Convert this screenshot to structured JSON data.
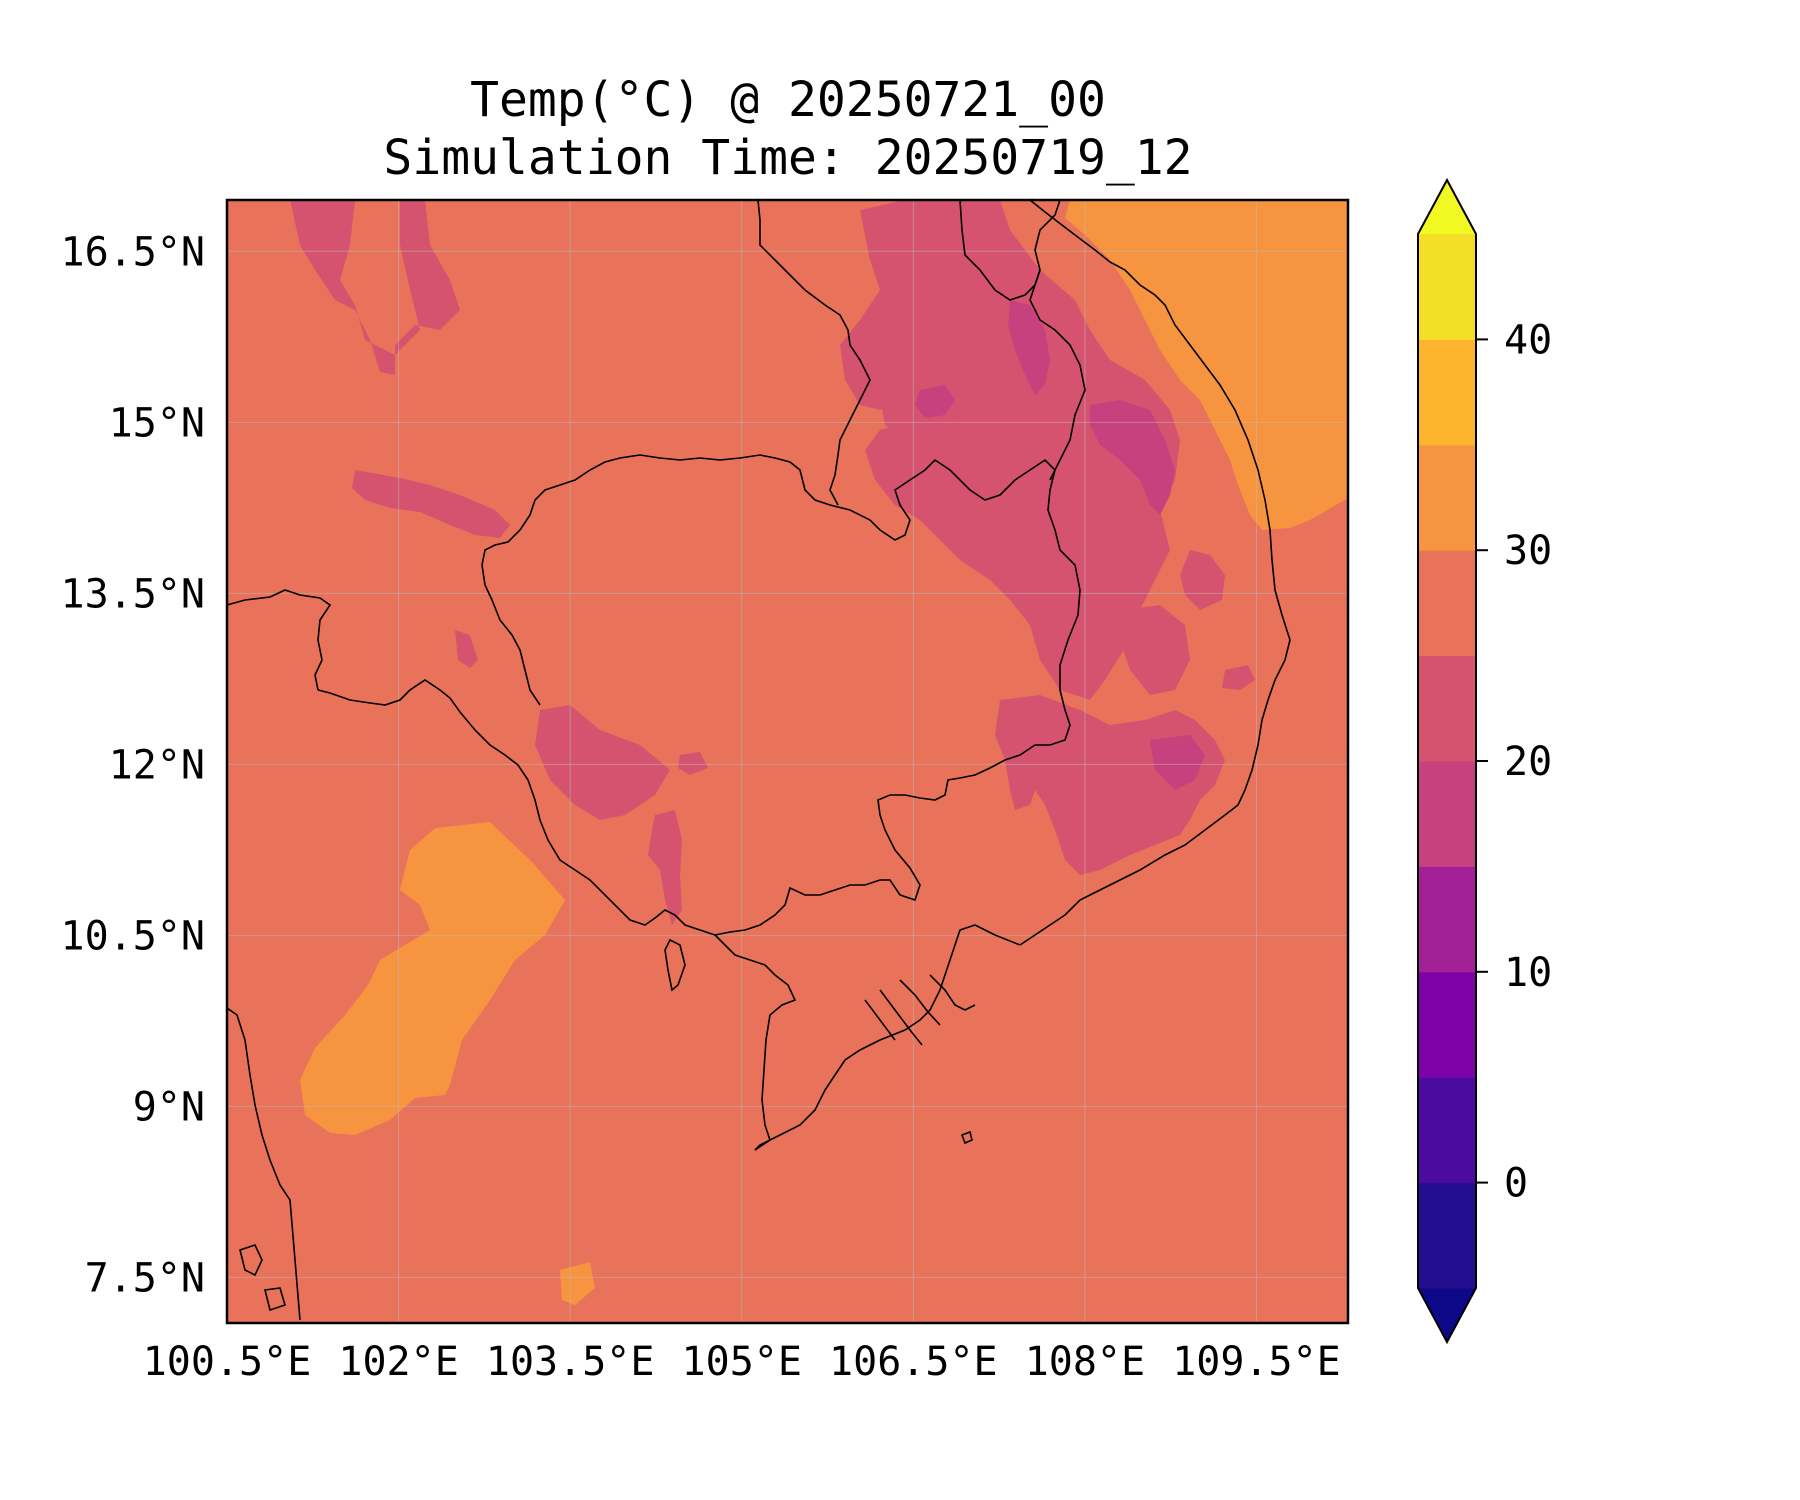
{
  "title": {
    "line1": "Temp(°C) @ 20250721_00",
    "line2": "Simulation Time: 20250719_12"
  },
  "map": {
    "lon_range": [
      100.5,
      110.3
    ],
    "lat_range": [
      7.1,
      16.95
    ],
    "lon_ticks": [
      {
        "value": 100.5,
        "label": "100.5°E"
      },
      {
        "value": 102.0,
        "label": "102°E"
      },
      {
        "value": 103.5,
        "label": "103.5°E"
      },
      {
        "value": 105.0,
        "label": "105°E"
      },
      {
        "value": 106.5,
        "label": "106.5°E"
      },
      {
        "value": 108.0,
        "label": "108°E"
      },
      {
        "value": 109.5,
        "label": "109.5°E"
      }
    ],
    "lat_ticks": [
      {
        "value": 16.5,
        "label": "16.5°N"
      },
      {
        "value": 15.0,
        "label": "15°N"
      },
      {
        "value": 13.5,
        "label": "13.5°N"
      },
      {
        "value": 12.0,
        "label": "12°N"
      },
      {
        "value": 10.5,
        "label": "10.5°N"
      },
      {
        "value": 9.0,
        "label": "9°N"
      },
      {
        "value": 7.5,
        "label": "7.5°N"
      }
    ],
    "background_color": "#e8735a",
    "grid": true,
    "grid_color": "#bbbbbb",
    "coastline_color": "#000000"
  },
  "colorbar": {
    "colormap": "plasma",
    "extend": "both",
    "levels": [
      -5,
      0,
      5,
      10,
      15,
      20,
      25,
      30,
      35,
      40,
      45
    ],
    "colors": [
      "#230e8f",
      "#4b0aa0",
      "#7d03a8",
      "#a42097",
      "#c6417e",
      "#d5536e",
      "#e8735a",
      "#f79440",
      "#fdb42f",
      "#f3e026"
    ],
    "under_color": "#0d0887",
    "over_color": "#f0f921",
    "ticks": [
      {
        "value": 0,
        "label": "0"
      },
      {
        "value": 10,
        "label": "10"
      },
      {
        "value": 20,
        "label": "20"
      },
      {
        "value": 30,
        "label": "30"
      },
      {
        "value": 40,
        "label": "40"
      }
    ]
  },
  "regions": [
    {
      "name": "warm-sea-south",
      "band": "30-35",
      "color": "#f79440"
    },
    {
      "name": "warm-sea-east",
      "band": "30-35",
      "color": "#f79440"
    },
    {
      "name": "cool-highlands-north",
      "band": "20-25",
      "color": "#d5536e"
    },
    {
      "name": "cool-highlands-central",
      "band": "20-25",
      "color": "#d5536e"
    },
    {
      "name": "cool-highlands-south",
      "band": "20-25",
      "color": "#d5536e"
    },
    {
      "name": "cold-core",
      "band": "15-20",
      "color": "#c6417e"
    }
  ]
}
